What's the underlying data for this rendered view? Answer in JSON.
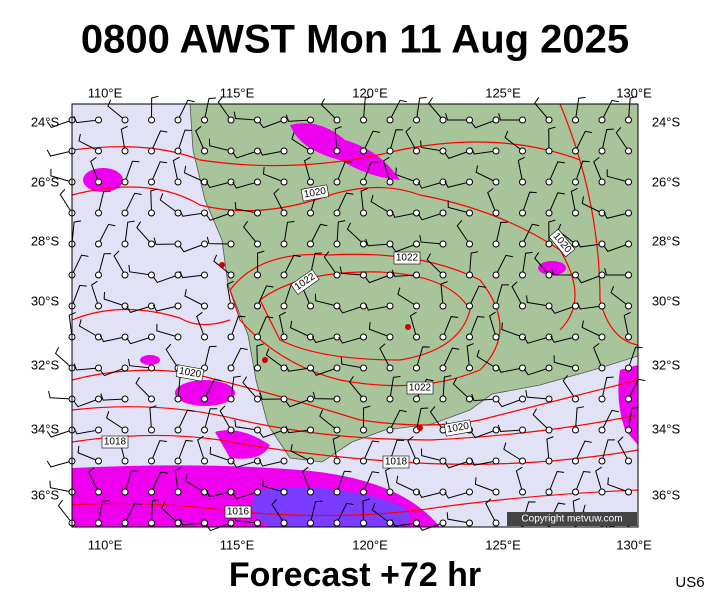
{
  "title": "0800 AWST Mon 11 Aug 2025",
  "map": {
    "lon_labels": [
      "110°E",
      "115°E",
      "120°E",
      "125°E",
      "130°E"
    ],
    "lat_labels": [
      "24°S",
      "26°S",
      "28°S",
      "30°S",
      "32°S",
      "34°S",
      "36°S"
    ],
    "contour_labels": [
      "1020",
      "1022",
      "1022",
      "1020",
      "1020",
      "1022",
      "1020",
      "1018",
      "1018",
      "1016"
    ],
    "copyright": "Copyright metvuw.com"
  },
  "footer": {
    "forecast": "Forecast +72 hr",
    "code": "US6"
  }
}
